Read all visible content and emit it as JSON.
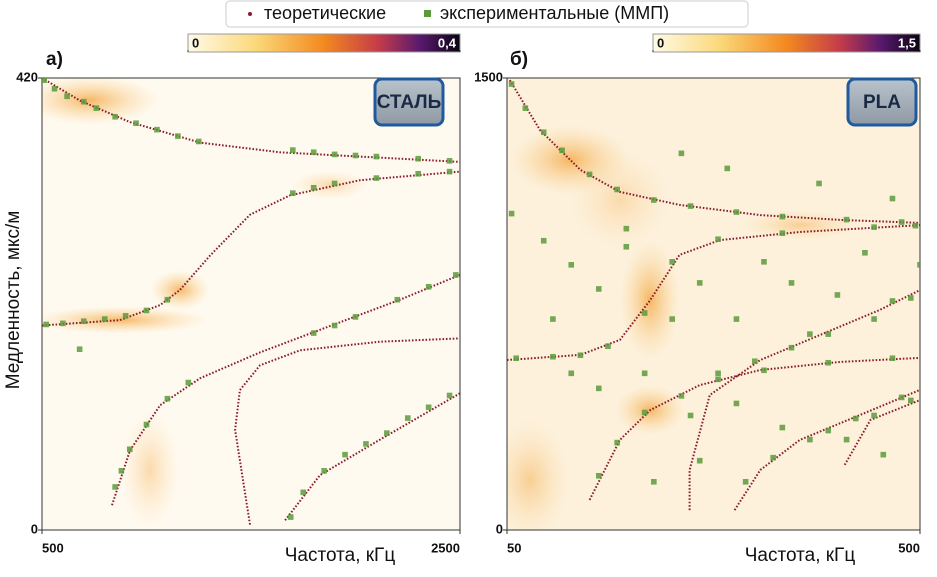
{
  "chart_data": [
    {
      "type": "scatter",
      "panel_label": "а)",
      "badge": "СТАЛЬ",
      "y_label": "Медленность, мкс/м",
      "x_label": "Частота, кГц",
      "xlim": [
        500,
        2500
      ],
      "xticks": [
        500,
        2500
      ],
      "ylim": [
        0,
        420
      ],
      "yticks": [
        0,
        420
      ],
      "colorbar": {
        "lim": [
          0,
          0.4
        ],
        "ticks": [
          0,
          {
            "value": 0.4,
            "label": "0,4"
          }
        ]
      },
      "series": [
        {
          "name": "теоретические",
          "color": "#8b1c2c",
          "style": "dotted",
          "x": [
            500,
            682,
            921,
            1256,
            1639,
            2022,
            2500,
            null,
            500,
            873,
            1065,
            1160,
            1304,
            1495,
            1687,
            2022,
            2500,
            null,
            835,
            921,
            1065,
            1256,
            1543,
            1830,
            2213,
            2500,
            null,
            1495,
            1424,
            1447,
            1543,
            1735,
            2117,
            2500,
            null,
            1663,
            1830,
            2117,
            2500
          ],
          "values": [
            420,
            399,
            379,
            360,
            351,
            347,
            342,
            null,
            190,
            195,
            209,
            223,
            255,
            293,
            311,
            325,
            333,
            null,
            23,
            74,
            116,
            141,
            165,
            186,
            214,
            237,
            null,
            5,
            93,
            130,
            153,
            167,
            175,
            178,
            null,
            9,
            51,
            84,
            127
          ]
        },
        {
          "name": "экспериментальные (ММП)",
          "color": "#5a9a3c",
          "style": "square",
          "x": [
            510,
            560,
            620,
            700,
            760,
            850,
            950,
            1050,
            1150,
            1250,
            1700,
            1800,
            1900,
            2000,
            2100,
            2300,
            2450,
            520,
            600,
            700,
            800,
            900,
            1000,
            1100,
            1700,
            1800,
            1900,
            2100,
            2300,
            2450,
            850,
            880,
            920,
            1000,
            1100,
            1200,
            1800,
            1900,
            2000,
            2200,
            2350,
            2480,
            680,
            1690,
            1750,
            1850,
            1950,
            2050,
            2150,
            2250,
            2350,
            2450
          ],
          "values": [
            418,
            410,
            403,
            398,
            392,
            384,
            378,
            372,
            366,
            361,
            353,
            351,
            349,
            348,
            347,
            345,
            343,
            191,
            192,
            194,
            196,
            199,
            204,
            214,
            313,
            318,
            322,
            327,
            331,
            333,
            40,
            55,
            75,
            98,
            122,
            137,
            183,
            190,
            198,
            214,
            226,
            237,
            168,
            12,
            35,
            55,
            70,
            80,
            90,
            104,
            114,
            125
          ]
        }
      ]
    },
    {
      "type": "scatter",
      "panel_label": "б)",
      "badge": "PLA",
      "x_label": "Частота, кГц",
      "xlim": [
        50,
        500
      ],
      "xticks": [
        50,
        500
      ],
      "ylim": [
        0,
        1500
      ],
      "yticks": [
        0,
        1500
      ],
      "colorbar": {
        "lim": [
          0,
          1.5
        ],
        "ticks": [
          0,
          {
            "value": 1.5,
            "label": "1,5"
          }
        ]
      },
      "series": [
        {
          "color": "#8b1c2c",
          "style": "dotted",
          "x": [
            53,
            86,
            130,
            173,
            238,
            326,
            413,
            500,
            null,
            50,
            130,
            173,
            206,
            238,
            282,
            369,
            500,
            null,
            140,
            173,
            206,
            260,
            326,
            413,
            500,
            null,
            249,
            249,
            271,
            326,
            391,
            456,
            500,
            null,
            298,
            326,
            369,
            435,
            500,
            null,
            418,
            446,
            500
          ],
          "values": [
            1493,
            1327,
            1195,
            1122,
            1079,
            1045,
            1029,
            1019,
            null,
            564,
            581,
            631,
            763,
            913,
            962,
            989,
            1012,
            null,
            100,
            299,
            398,
            481,
            531,
            558,
            571,
            null,
            66,
            199,
            448,
            564,
            647,
            730,
            796,
            null,
            66,
            199,
            299,
            382,
            465,
            null,
            216,
            365,
            431
          ]
        },
        {
          "color": "#5a9a3c",
          "style": "square",
          "x": [
            55,
            70,
            90,
            110,
            140,
            170,
            210,
            250,
            300,
            350,
            420,
            480,
            60,
            100,
            130,
            160,
            200,
            230,
            280,
            350,
            450,
            495,
            150,
            170,
            200,
            240,
            280,
            330,
            400,
            470,
            280,
            320,
            360,
            400,
            450,
            490,
            310,
            340,
            380,
            430,
            480,
            420,
            450,
            490,
            55,
            90,
            120,
            150,
            180,
            230,
            260,
            300,
            330,
            360,
            380,
            410,
            440,
            470,
            500,
            120,
            150,
            200,
            250,
            300,
            350,
            400,
            460,
            240,
            290,
            390,
            470,
            180,
            100,
            210,
            260
          ],
          "values": [
            1480,
            1400,
            1320,
            1260,
            1180,
            1130,
            1095,
            1075,
            1055,
            1040,
            1030,
            1022,
            570,
            575,
            580,
            610,
            720,
            890,
            965,
            985,
            1005,
            1010,
            180,
            290,
            390,
            445,
            500,
            530,
            555,
            570,
            520,
            560,
            605,
            650,
            700,
            770,
            160,
            240,
            300,
            370,
            440,
            300,
            380,
            430,
            1050,
            960,
            880,
            800,
            940,
            700,
            820,
            700,
            890,
            820,
            650,
            780,
            920,
            760,
            880,
            520,
            470,
            520,
            380,
            420,
            340,
            330,
            250,
            1250,
            1200,
            1150,
            1100,
            1000,
            700,
            160,
            230
          ]
        }
      ]
    }
  ]
}
